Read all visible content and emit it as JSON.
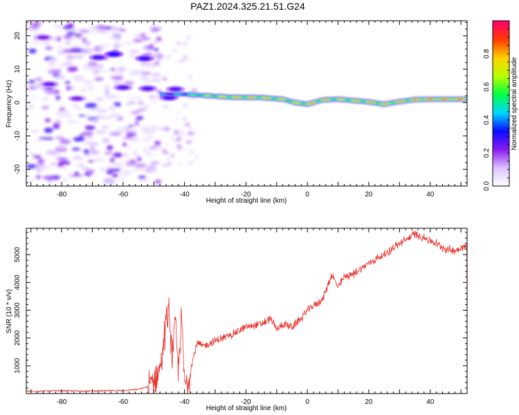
{
  "figure_title": "PAZ1.2024.325.21.51.G24",
  "chart_data": [
    {
      "type": "heatmap",
      "xlabel": "Height of straight line (km)",
      "ylabel": "Frequency (Hz)",
      "xlim": [
        -91.5,
        52
      ],
      "ylim": [
        -25,
        24.5
      ],
      "xticks": [
        -80,
        -60,
        -40,
        -20,
        0,
        20,
        40
      ],
      "yticks": [
        -20,
        -10,
        0,
        10,
        20
      ],
      "colorbar": {
        "label": "Normalized spectral amplitude",
        "range": [
          0,
          1
        ],
        "ticks": [
          0.0,
          0.2,
          0.4,
          0.6,
          0.8
        ],
        "colormap": [
          "#ffffff",
          "#ddc4ff",
          "#8a1cf0",
          "#0a0aff",
          "#00d8ff",
          "#00ff44",
          "#b8ff00",
          "#ffd000",
          "#ff3a00",
          "#ff0070"
        ]
      },
      "noise_region": {
        "x": [
          -90,
          -48
        ],
        "y": [
          -24,
          24
        ],
        "amplitude": [
          0.05,
          0.3
        ]
      },
      "blobs": [
        {
          "x": -63,
          "y": 14.5,
          "amp": 0.33
        },
        {
          "x": -68,
          "y": 13.5,
          "amp": 0.28
        },
        {
          "x": -53,
          "y": 13.2,
          "amp": 0.3
        },
        {
          "x": -60,
          "y": 4.5,
          "amp": 0.26
        },
        {
          "x": -52,
          "y": 4.2,
          "amp": 0.27
        },
        {
          "x": -43,
          "y": 4.0,
          "amp": 0.27
        },
        {
          "x": -84,
          "y": 5.5,
          "amp": 0.24
        },
        {
          "x": -75,
          "y": 1.2,
          "amp": 0.22
        },
        {
          "x": -86,
          "y": 19.5,
          "amp": 0.22
        },
        {
          "x": -45,
          "y": 1.5,
          "amp": 0.3
        }
      ],
      "ridge": {
        "x": [
          -48,
          -40,
          -35,
          -25,
          -15,
          -8,
          -4,
          0,
          5,
          10,
          20,
          25,
          30,
          35,
          40,
          52
        ],
        "freq": [
          2.5,
          2.5,
          2.2,
          1.6,
          1.5,
          1.0,
          0.0,
          -0.5,
          0.8,
          1.0,
          0.2,
          -0.5,
          0.3,
          0.9,
          1.0,
          1.0
        ],
        "amp": [
          0.45,
          0.55,
          0.7,
          0.85,
          0.85,
          0.8,
          0.8,
          0.85,
          0.85,
          0.8,
          0.85,
          0.85,
          0.85,
          0.9,
          0.95,
          0.95
        ]
      }
    },
    {
      "type": "line",
      "xlabel": "Height of straight line (km)",
      "ylabel": "SNR (10 * v/v)",
      "xlim": [
        -91.5,
        52
      ],
      "ylim": [
        0,
        5950
      ],
      "xticks": [
        -80,
        -60,
        -40,
        -20,
        0,
        20,
        40
      ],
      "yticks": [
        1000,
        2000,
        3000,
        4000,
        5000
      ],
      "series": [
        {
          "color": "#e8302a",
          "x": [
            -91.5,
            -80,
            -70,
            -60,
            -55,
            -52,
            -50,
            -48,
            -47,
            -46,
            -45,
            -44,
            -43,
            -42,
            -41,
            -40,
            -39,
            -38,
            -36,
            -34,
            -30,
            -25,
            -20,
            -15,
            -12,
            -10,
            -8,
            -5,
            -2,
            0,
            5,
            8,
            10,
            12,
            15,
            20,
            25,
            30,
            33,
            35,
            38,
            42,
            45,
            48,
            50,
            52
          ],
          "y": [
            80,
            100,
            90,
            110,
            150,
            250,
            500,
            900,
            1600,
            2600,
            2900,
            1400,
            2600,
            800,
            2800,
            400,
            300,
            900,
            1800,
            1700,
            1900,
            2100,
            2400,
            2500,
            2700,
            2300,
            2500,
            2400,
            2700,
            3000,
            3400,
            4300,
            3800,
            4200,
            4300,
            4700,
            5000,
            5400,
            5600,
            5750,
            5600,
            5400,
            5200,
            5150,
            5250,
            5300
          ]
        }
      ]
    }
  ]
}
